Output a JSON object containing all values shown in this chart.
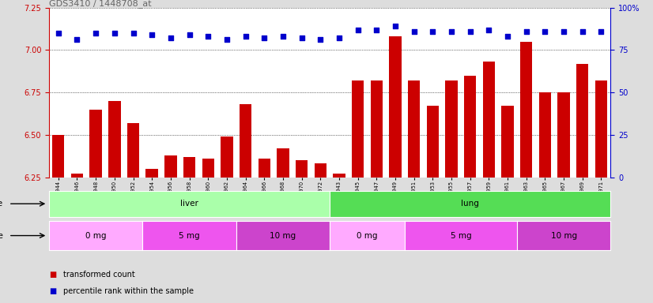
{
  "title": "GDS3410 / 1448708_at",
  "samples": [
    "GSM326944",
    "GSM326946",
    "GSM326948",
    "GSM326950",
    "GSM326952",
    "GSM326954",
    "GSM326956",
    "GSM326958",
    "GSM326960",
    "GSM326962",
    "GSM326964",
    "GSM326966",
    "GSM326968",
    "GSM326970",
    "GSM326972",
    "GSM326943",
    "GSM326945",
    "GSM326947",
    "GSM326949",
    "GSM326951",
    "GSM326953",
    "GSM326955",
    "GSM326957",
    "GSM326959",
    "GSM326961",
    "GSM326963",
    "GSM326965",
    "GSM326967",
    "GSM326969",
    "GSM326971"
  ],
  "bar_values": [
    6.5,
    6.27,
    6.65,
    6.7,
    6.57,
    6.3,
    6.38,
    6.37,
    6.36,
    6.49,
    6.68,
    6.36,
    6.42,
    6.35,
    6.33,
    6.27,
    6.82,
    6.82,
    7.08,
    6.82,
    6.67,
    6.82,
    6.85,
    6.93,
    6.67,
    7.05,
    6.75,
    6.75,
    6.92,
    6.82
  ],
  "dot_values": [
    7.1,
    7.06,
    7.1,
    7.1,
    7.1,
    7.09,
    7.07,
    7.09,
    7.08,
    7.06,
    7.08,
    7.07,
    7.08,
    7.07,
    7.06,
    7.07,
    7.12,
    7.12,
    7.14,
    7.11,
    7.11,
    7.11,
    7.11,
    7.12,
    7.08,
    7.11,
    7.11,
    7.11,
    7.11,
    7.11
  ],
  "ylim_left": [
    6.25,
    7.25
  ],
  "ylim_right": [
    0,
    100
  ],
  "yticks_left": [
    6.25,
    6.5,
    6.75,
    7.0,
    7.25
  ],
  "yticks_right": [
    0,
    25,
    50,
    75,
    100
  ],
  "bar_color": "#cc0000",
  "dot_color": "#0000cc",
  "tissue_labels": [
    {
      "label": "liver",
      "start": 0,
      "end": 15,
      "color": "#aaffaa"
    },
    {
      "label": "lung",
      "start": 15,
      "end": 30,
      "color": "#55dd55"
    }
  ],
  "dose_labels": [
    {
      "label": "0 mg",
      "start": 0,
      "end": 5,
      "color": "#ffaaff"
    },
    {
      "label": "5 mg",
      "start": 5,
      "end": 10,
      "color": "#ee55ee"
    },
    {
      "label": "10 mg",
      "start": 10,
      "end": 15,
      "color": "#cc44cc"
    },
    {
      "label": "0 mg",
      "start": 15,
      "end": 19,
      "color": "#ffaaff"
    },
    {
      "label": "5 mg",
      "start": 19,
      "end": 25,
      "color": "#ee55ee"
    },
    {
      "label": "10 mg",
      "start": 25,
      "end": 30,
      "color": "#cc44cc"
    }
  ],
  "legend_items": [
    {
      "label": "transformed count",
      "color": "#cc0000"
    },
    {
      "label": "percentile rank within the sample",
      "color": "#0000cc"
    }
  ],
  "background_color": "#dddddd",
  "plot_bg_color": "#ffffff",
  "title_color": "#666666",
  "left_axis_color": "#cc0000",
  "right_axis_color": "#0000cc"
}
